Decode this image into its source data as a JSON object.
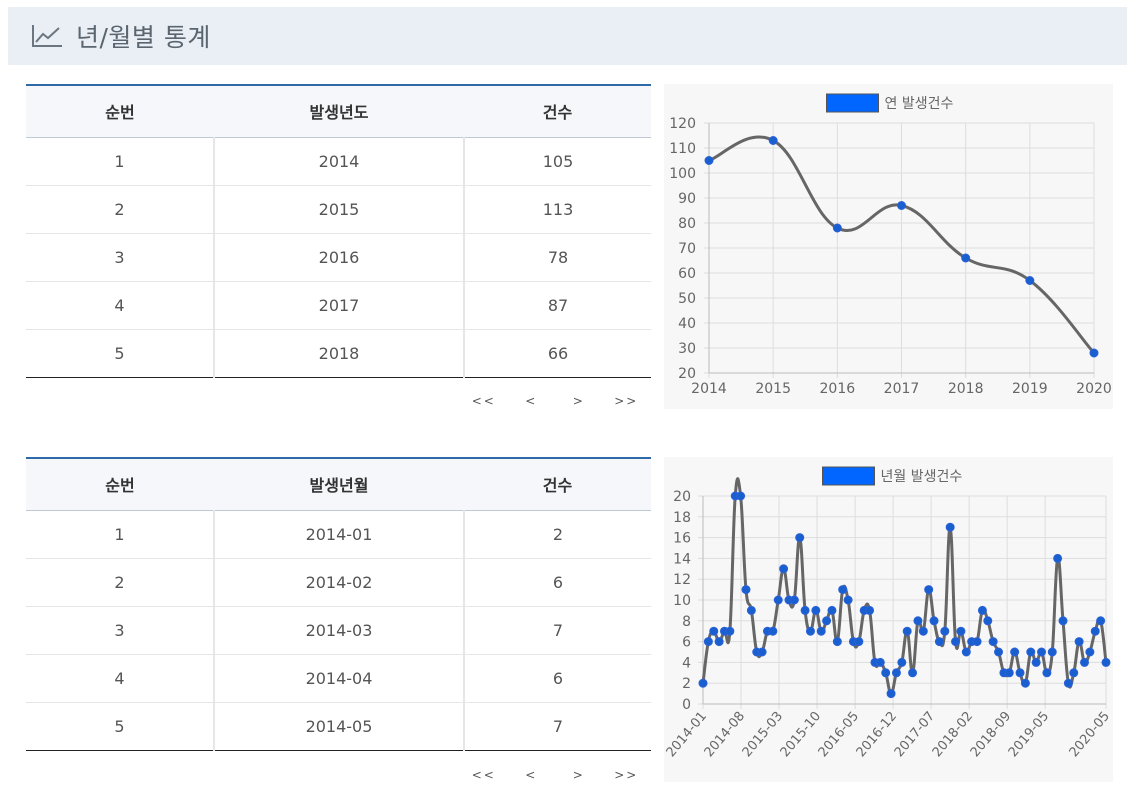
{
  "page": {
    "title": "년/월별 통계",
    "title_icon": "line-chart-icon"
  },
  "yearly": {
    "columns": [
      "순번",
      "발생년도",
      "건수"
    ],
    "rows": [
      [
        "1",
        "2014",
        "105"
      ],
      [
        "2",
        "2015",
        "113"
      ],
      [
        "3",
        "2016",
        "78"
      ],
      [
        "4",
        "2017",
        "87"
      ],
      [
        "5",
        "2018",
        "66"
      ]
    ],
    "pager": {
      "first": "<<",
      "prev": "<",
      "next": ">",
      "last": ">>"
    }
  },
  "monthly": {
    "columns": [
      "순번",
      "발생년월",
      "건수"
    ],
    "rows": [
      [
        "1",
        "2014-01",
        "2"
      ],
      [
        "2",
        "2014-02",
        "6"
      ],
      [
        "3",
        "2014-03",
        "7"
      ],
      [
        "4",
        "2014-04",
        "6"
      ],
      [
        "5",
        "2014-05",
        "7"
      ]
    ],
    "pager": {
      "first": "<<",
      "prev": "<",
      "next": ">",
      "last": ">>"
    }
  },
  "chart_data": [
    {
      "type": "line",
      "legend": "연 발생건수",
      "legend_position": "top",
      "x": [
        "2014",
        "2015",
        "2016",
        "2017",
        "2018",
        "2019",
        "2020"
      ],
      "values": [
        105,
        113,
        78,
        87,
        66,
        57,
        28
      ],
      "ylim": [
        20,
        120
      ],
      "y_ticks": [
        120,
        110,
        100,
        90,
        80,
        70,
        60,
        50,
        40,
        30,
        20
      ],
      "grid": true,
      "line_color": "#666666",
      "point_color": "#1a5fd0",
      "legend_color": "#0066ff"
    },
    {
      "type": "line",
      "legend": "년월 발생건수",
      "legend_position": "top",
      "x_tick_labels": [
        "2014-01",
        "2014-08",
        "2015-03",
        "2015-10",
        "2016-05",
        "2016-12",
        "2017-07",
        "2018-02",
        "2018-09",
        "2019-05",
        "2020-05"
      ],
      "values": [
        2,
        6,
        7,
        6,
        7,
        7,
        20,
        20,
        11,
        9,
        5,
        5,
        7,
        7,
        10,
        13,
        10,
        10,
        16,
        9,
        7,
        9,
        7,
        8,
        9,
        6,
        11,
        10,
        6,
        6,
        9,
        9,
        4,
        4,
        3,
        1,
        3,
        4,
        7,
        3,
        8,
        7,
        11,
        8,
        6,
        7,
        17,
        6,
        7,
        5,
        6,
        6,
        9,
        8,
        6,
        5,
        3,
        3,
        5,
        3,
        2,
        5,
        4,
        5,
        3,
        5,
        14,
        8,
        2,
        3,
        6,
        4,
        5,
        7,
        8,
        4
      ],
      "ylim": [
        0,
        20
      ],
      "y_ticks": [
        20,
        18,
        16,
        14,
        12,
        10,
        8,
        6,
        4,
        2,
        0
      ],
      "grid": true,
      "line_color": "#666666",
      "point_color": "#1a5fd0",
      "legend_color": "#0066ff"
    }
  ]
}
